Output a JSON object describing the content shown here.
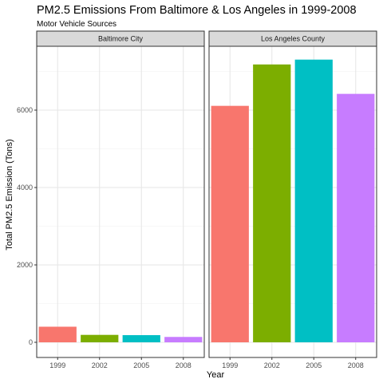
{
  "chart_data": {
    "type": "bar",
    "title": "PM2.5 Emissions From Baltimore & Los Angeles in 1999-2008",
    "subtitle": "Motor Vehicle Sources",
    "xlabel": "Year",
    "ylabel": "Total PM2.5 Emission (Tons)",
    "categories": [
      "1999",
      "2002",
      "2005",
      "2008"
    ],
    "colors": [
      "#F8766D",
      "#7CAE00",
      "#00BFC4",
      "#C77CFF"
    ],
    "ylim": [
      0,
      7700
    ],
    "yticks": [
      0,
      2000,
      4000,
      6000
    ],
    "grid": true,
    "facets": [
      {
        "name": "Baltimore City",
        "values": [
          403,
          192,
          185,
          139
        ]
      },
      {
        "name": "Los Angeles County",
        "values": [
          6110,
          7180,
          7305,
          6420
        ]
      }
    ]
  }
}
